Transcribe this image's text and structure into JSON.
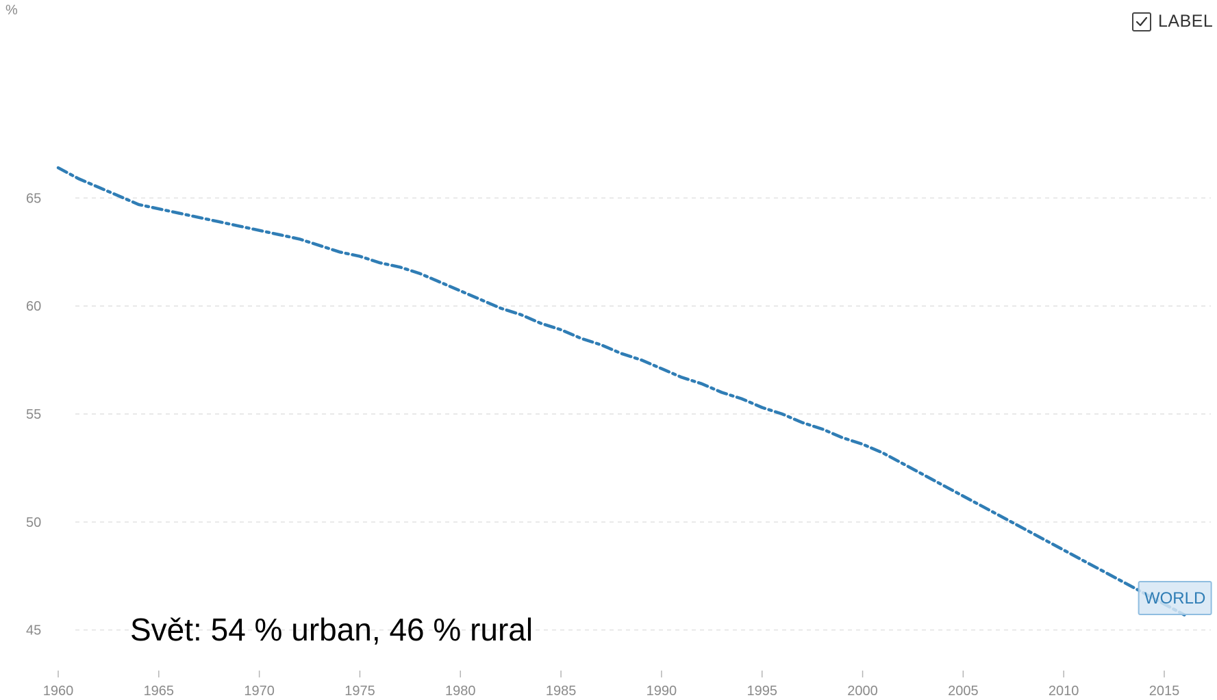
{
  "unit_label": "%",
  "label_toggle": {
    "text": "LABEL",
    "checked": true
  },
  "caption": "Svět: 54 % urban, 46 % rural",
  "colors": {
    "series": "#2f7db5",
    "grid": "#e2e2e2",
    "tick_text": "#8a8a8a",
    "series_label_fill": "#d6e6f4",
    "series_label_stroke": "#8fbde0"
  },
  "chart_data": {
    "type": "line",
    "title": "",
    "xlabel": "",
    "ylabel": "%",
    "xlim": [
      1960,
      2016
    ],
    "ylim": [
      43.5,
      71
    ],
    "x_ticks": [
      1960,
      1965,
      1970,
      1975,
      1980,
      1985,
      1990,
      1995,
      2000,
      2005,
      2010,
      2015
    ],
    "y_ticks": [
      45,
      50,
      55,
      60,
      65
    ],
    "grid": "horizontal",
    "line_style": "dash-dot",
    "series": [
      {
        "name": "WORLD",
        "x": [
          1960,
          1961,
          1962,
          1963,
          1964,
          1965,
          1966,
          1967,
          1968,
          1969,
          1970,
          1971,
          1972,
          1973,
          1974,
          1975,
          1976,
          1977,
          1978,
          1979,
          1980,
          1981,
          1982,
          1983,
          1984,
          1985,
          1986,
          1987,
          1988,
          1989,
          1990,
          1991,
          1992,
          1993,
          1994,
          1995,
          1996,
          1997,
          1998,
          1999,
          2000,
          2001,
          2002,
          2003,
          2004,
          2005,
          2006,
          2007,
          2008,
          2009,
          2010,
          2011,
          2012,
          2013,
          2014,
          2015,
          2016
        ],
        "y": [
          66.4,
          65.9,
          65.5,
          65.1,
          64.7,
          64.5,
          64.3,
          64.1,
          63.9,
          63.7,
          63.5,
          63.3,
          63.1,
          62.8,
          62.5,
          62.3,
          62.0,
          61.8,
          61.5,
          61.1,
          60.7,
          60.3,
          59.9,
          59.6,
          59.2,
          58.9,
          58.5,
          58.2,
          57.8,
          57.5,
          57.1,
          56.7,
          56.4,
          56.0,
          55.7,
          55.3,
          55.0,
          54.6,
          54.3,
          53.9,
          53.6,
          53.2,
          52.7,
          52.2,
          51.7,
          51.2,
          50.7,
          50.2,
          49.7,
          49.2,
          48.7,
          48.2,
          47.7,
          47.2,
          46.7,
          46.2,
          45.7
        ]
      }
    ]
  }
}
